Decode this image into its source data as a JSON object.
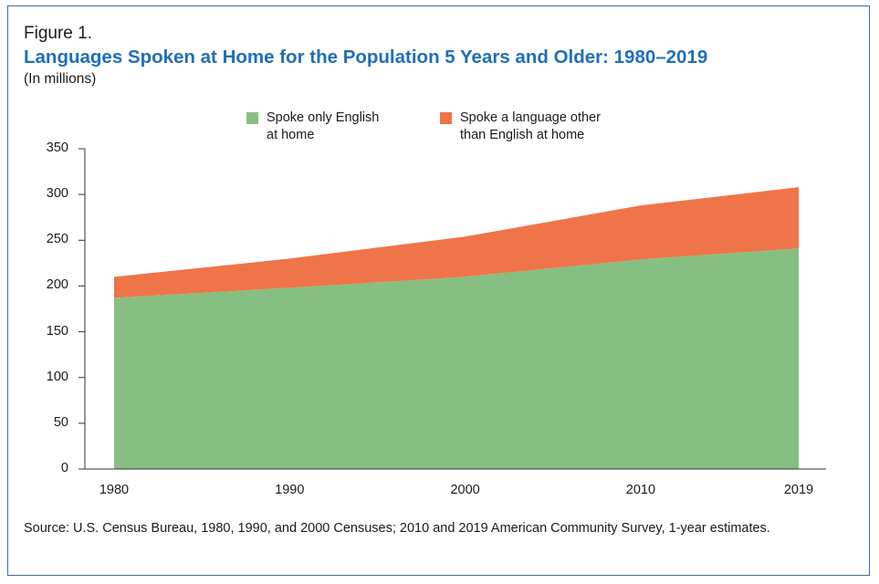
{
  "figure_label": "Figure 1.",
  "chart_data": {
    "type": "area",
    "stacked": true,
    "title": "Languages Spoken at Home for the Population 5 Years and Older: 1980–2019",
    "subtitle": "(In millions)",
    "x": [
      1980,
      1990,
      2000,
      2010,
      2019
    ],
    "series": [
      {
        "name": "Spoke only English at home",
        "legend_text": "Spoke only English\nat home",
        "color": "#86bf81",
        "values": [
          187,
          198,
          210,
          229,
          241
        ]
      },
      {
        "name": "Spoke a language other than English at home",
        "legend_text": "Spoke a language other\nthan English at home",
        "color": "#f07449",
        "values": [
          23,
          32,
          44,
          59,
          67
        ]
      }
    ],
    "ylim": [
      0,
      350
    ],
    "yticks": [
      "0",
      "50",
      "100",
      "150",
      "200",
      "250",
      "300",
      "350"
    ],
    "xticks": [
      "1980",
      "1990",
      "2000",
      "2010",
      "2019"
    ],
    "grid": false,
    "legend_position": "top-center"
  },
  "source": "Source: U.S. Census Bureau, 1980, 1990, and 2000 Censuses; 2010 and 2019 American Community Survey, 1-year estimates."
}
